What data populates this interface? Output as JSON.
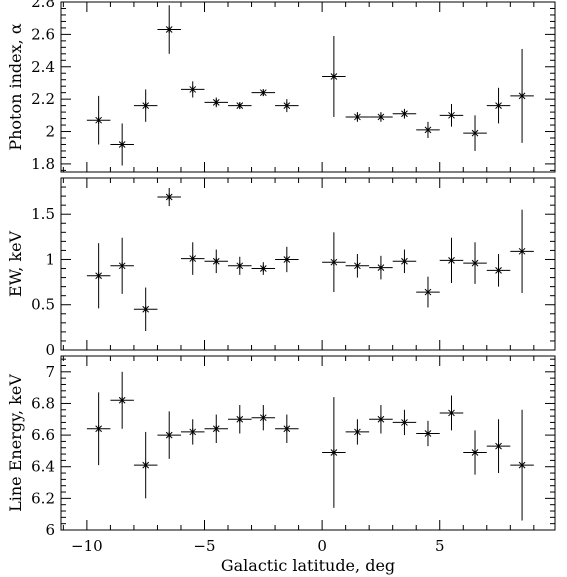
{
  "chart_data": [
    {
      "type": "scatter",
      "ylabel": "Photon index, α",
      "ylim": [
        1.75,
        2.8
      ],
      "yticks": [
        1.8,
        2,
        2.2,
        2.4,
        2.6,
        2.8
      ],
      "yticklabels": [
        "1.8",
        "2",
        "2.2",
        "2.4",
        "2.6",
        "2.8"
      ],
      "x": [
        -9.5,
        -8.5,
        -7.5,
        -6.5,
        -5.5,
        -4.5,
        -3.5,
        -2.5,
        -1.5,
        0.5,
        1.5,
        2.5,
        3.5,
        4.5,
        5.5,
        6.5,
        7.5,
        8.5
      ],
      "y": [
        2.07,
        1.92,
        2.16,
        2.63,
        2.26,
        2.18,
        2.16,
        2.24,
        2.16,
        2.34,
        2.09,
        2.09,
        2.11,
        2.01,
        2.1,
        1.99,
        2.16,
        2.22
      ],
      "yerr": [
        0.15,
        0.13,
        0.1,
        0.15,
        0.05,
        0.03,
        0.02,
        0.02,
        0.04,
        0.25,
        0.03,
        0.03,
        0.03,
        0.05,
        0.07,
        0.11,
        0.11,
        0.29
      ],
      "xerr": 0.5
    },
    {
      "type": "scatter",
      "ylabel": "EW, keV",
      "ylim": [
        0,
        1.9
      ],
      "yticks": [
        0,
        0.5,
        1,
        1.5
      ],
      "yticklabels": [
        "0",
        "0.5",
        "1",
        "1.5"
      ],
      "x": [
        -9.5,
        -8.5,
        -7.5,
        -6.5,
        -5.5,
        -4.5,
        -3.5,
        -2.5,
        -1.5,
        0.5,
        1.5,
        2.5,
        3.5,
        4.5,
        5.5,
        6.5,
        7.5,
        8.5
      ],
      "y": [
        0.82,
        0.93,
        0.45,
        1.69,
        1.01,
        0.98,
        0.93,
        0.9,
        1.0,
        0.97,
        0.93,
        0.91,
        0.98,
        0.64,
        0.99,
        0.96,
        0.88,
        1.09
      ],
      "yerr": [
        0.36,
        0.31,
        0.24,
        0.1,
        0.18,
        0.13,
        0.1,
        0.07,
        0.14,
        0.33,
        0.13,
        0.13,
        0.13,
        0.17,
        0.25,
        0.23,
        0.18,
        0.46
      ],
      "xerr": 0.5
    },
    {
      "type": "scatter",
      "xlabel": "Galactic latitude, deg",
      "ylabel": "Line Energy, keV",
      "ylim": [
        6.0,
        7.1
      ],
      "yticks": [
        6,
        6.2,
        6.4,
        6.6,
        6.8,
        7
      ],
      "yticklabels": [
        "6",
        "6.2",
        "6.4",
        "6.6",
        "6.8",
        "7"
      ],
      "x": [
        -9.5,
        -8.5,
        -7.5,
        -6.5,
        -5.5,
        -4.5,
        -3.5,
        -2.5,
        -1.5,
        0.5,
        1.5,
        2.5,
        3.5,
        4.5,
        5.5,
        6.5,
        7.5,
        8.5
      ],
      "y": [
        6.64,
        6.82,
        6.41,
        6.6,
        6.62,
        6.64,
        6.7,
        6.71,
        6.64,
        6.49,
        6.62,
        6.7,
        6.68,
        6.61,
        6.74,
        6.49,
        6.53,
        6.41
      ],
      "yerr": [
        0.23,
        0.18,
        0.21,
        0.15,
        0.08,
        0.09,
        0.09,
        0.08,
        0.09,
        0.35,
        0.08,
        0.09,
        0.08,
        0.08,
        0.11,
        0.14,
        0.17,
        0.35
      ],
      "xerr": 0.5
    }
  ],
  "xaxis": {
    "xlim": [
      -11.1,
      9.9
    ],
    "xticks": [
      -10,
      -5,
      0,
      5
    ],
    "xticklabels": [
      "−10",
      "−5",
      "0",
      "5"
    ]
  }
}
